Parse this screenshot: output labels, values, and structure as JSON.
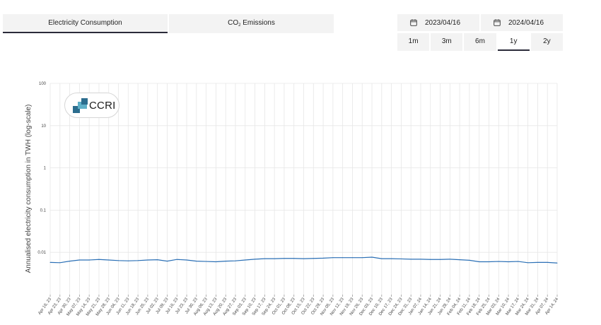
{
  "tabs": {
    "electricity": "Electricity Consumption",
    "emissions_prefix": "CO",
    "emissions_sub": "2",
    "emissions_suffix": " Emissions"
  },
  "dates": {
    "start": "2023/04/16",
    "end": "2024/04/16"
  },
  "ranges": [
    "1m",
    "3m",
    "6m",
    "1y",
    "2y"
  ],
  "active_range": "1y",
  "logo": {
    "text": "CCRI"
  },
  "colors": {
    "line": "#2a6fb5",
    "grid": "#e6e6e6",
    "tab_bg": "#f3f3f3",
    "logo_dark": "#2c6d8e",
    "logo_light": "#5fb0c8"
  },
  "chart_data": {
    "type": "line",
    "ylabel": "Annualised electricity consumption in TWH (log-scale)",
    "yscale": "log",
    "ylim": [
      0.001,
      100
    ],
    "yticks": [
      100,
      10,
      1,
      0.1,
      0.01
    ],
    "ytick_labels": [
      "100",
      "10",
      "1",
      "0.1",
      "0.01"
    ],
    "grid": true,
    "x_tick_labels": [
      "Apr 16, 23",
      "Apr 23, 23",
      "Apr 30, 23",
      "May 07, 23",
      "May 14, 23",
      "May 21, 23",
      "May 28, 23",
      "Jun 04, 23",
      "Jun 11, 23",
      "Jun 18, 23",
      "Jun 25, 23",
      "Jul 02, 23",
      "Jul 09, 23",
      "Jul 16, 23",
      "Jul 23, 23",
      "Jul 30, 23",
      "Aug 06, 23",
      "Aug 13, 23",
      "Aug 20, 23",
      "Aug 27, 23",
      "Sep 03, 23",
      "Sep 10, 23",
      "Sep 17, 23",
      "Sep 24, 23",
      "Oct 01, 23",
      "Oct 08, 23",
      "Oct 15, 23",
      "Oct 22, 23",
      "Oct 29, 23",
      "Nov 05, 23",
      "Nov 12, 23",
      "Nov 19, 23",
      "Nov 26, 23",
      "Dec 03, 23",
      "Dec 10, 23",
      "Dec 17, 23",
      "Dec 24, 23",
      "Dec 31, 23",
      "Jan 07, 24",
      "Jan 14, 24",
      "Jan 21, 24",
      "Jan 28, 24",
      "Feb 04, 24",
      "Feb 11, 24",
      "Feb 18, 24",
      "Feb 25, 24",
      "Mar 03, 24",
      "Mar 10, 24",
      "Mar 17, 24",
      "Mar 24, 24",
      "Mar 31, 24",
      "Apr 07, 24",
      "Apr 14, 24"
    ],
    "series": [
      {
        "values": [
          0.0058,
          0.0057,
          0.0062,
          0.0066,
          0.0066,
          0.0068,
          0.0066,
          0.0064,
          0.0063,
          0.0064,
          0.0066,
          0.0067,
          0.0062,
          0.0068,
          0.0066,
          0.0062,
          0.0061,
          0.006,
          0.0062,
          0.0063,
          0.0066,
          0.0069,
          0.0071,
          0.0071,
          0.0072,
          0.0072,
          0.0071,
          0.0072,
          0.0073,
          0.0075,
          0.0075,
          0.0075,
          0.0075,
          0.0077,
          0.0071,
          0.0071,
          0.007,
          0.0069,
          0.0069,
          0.0068,
          0.0068,
          0.0069,
          0.0067,
          0.0065,
          0.006,
          0.006,
          0.0061,
          0.006,
          0.0061,
          0.0057,
          0.0058,
          0.0058,
          0.0056
        ]
      }
    ]
  }
}
